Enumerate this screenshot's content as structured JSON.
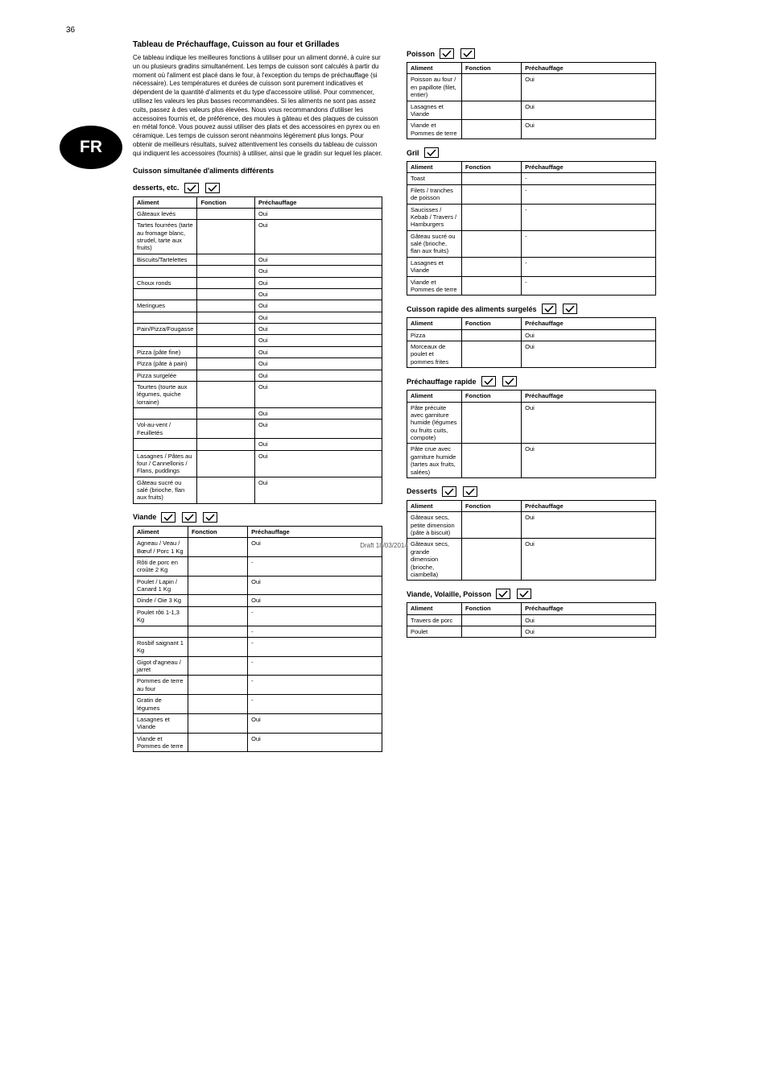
{
  "page_number": "36",
  "badge": "FR",
  "footer": "Draft 18/03/2014",
  "intro": {
    "heading": "Tableau de Préchauffage, Cuisson au four et Grillades",
    "text": "Ce tableau indique les meilleures fonctions à utiliser pour un aliment donné, à cuire sur un ou plusieurs gradins simultanément. Les temps de cuisson sont calculés à partir du moment où l'aliment est placé dans le four, à l'exception du temps de préchauffage (si nécessaire). Les températures et durées de cuisson sont purement indicatives et dépendent de la quantité d'aliments et du type d'accessoire utilisé. Pour commencer, utilisez les valeurs les plus basses recommandées. Si les aliments ne sont pas assez cuits, passez à des valeurs plus élevées. Nous vous recommandons d'utiliser les accessoires fournis et, de préférence, des moules à gâteau et des plaques de cuisson en métal foncé. Vous pouvez aussi utiliser des plats et des accessoires en pyrex ou en céramique. Les temps de cuisson seront néanmoins légèrement plus longs. Pour obtenir de meilleurs résultats, suivez attentivement les conseils du tableau de cuisson qui indiquent les accessoires (fournis) à utiliser, ainsi que le gradin sur lequel les placer.",
    "simul_label": "Cuisson simultanée d'aliments différents"
  },
  "table_headers": {
    "food": "Aliment",
    "function": "Fonction",
    "preheat": "Préchauffage"
  },
  "sections": [
    {
      "title_parts": [
        "desserts, etc."
      ],
      "icons": [
        "check",
        "check"
      ],
      "rows": [
        [
          "Gâteaux levés",
          "",
          "Oui"
        ],
        [
          "Tartes fourrées (tarte au fromage blanc, strudel, tarte aux fruits)",
          "",
          "Oui"
        ],
        [
          "Biscuits/Tartelettes",
          "",
          "Oui"
        ],
        [
          "",
          "",
          "Oui"
        ],
        [
          "Choux ronds",
          "",
          "Oui"
        ],
        [
          "",
          "",
          "Oui"
        ],
        [
          "Meringues",
          "",
          "Oui"
        ],
        [
          "",
          "",
          "Oui"
        ],
        [
          "Pain/Pizza/Fougasse",
          "",
          "Oui"
        ],
        [
          "",
          "",
          "Oui"
        ],
        [
          "Pizza (pâte fine)",
          "",
          "Oui"
        ],
        [
          "Pizza (pâte à pain)",
          "",
          "Oui"
        ],
        [
          "Pizza surgelée",
          "",
          "Oui"
        ],
        [
          "Tourtes (tourte aux légumes, quiche lorraine)",
          "",
          "Oui"
        ],
        [
          "",
          "",
          "Oui"
        ],
        [
          "Vol-au-vent / Feuilletés",
          "",
          "Oui"
        ],
        [
          "",
          "",
          "Oui"
        ],
        [
          "Lasagnes / Pâtes au four / Cannellonis / Flans, puddings",
          "",
          "Oui"
        ],
        [
          "Gâteau sucré ou salé (brioche, flan aux fruits)",
          "",
          "Oui"
        ]
      ]
    },
    {
      "title_parts": [
        "Viande"
      ],
      "icons": [
        "check",
        "check",
        "check"
      ],
      "rows": [
        [
          "Agneau / Veau / Bœuf / Porc 1 Kg",
          "",
          "Oui"
        ],
        [
          "Rôti de porc en croûte 2 Kg",
          "",
          "-"
        ],
        [
          "Poulet / Lapin / Canard 1 Kg",
          "",
          "Oui"
        ],
        [
          "Dinde / Oie 3 Kg",
          "",
          "Oui"
        ],
        [
          "Poulet rôti 1-1,3 Kg",
          "",
          "-"
        ],
        [
          "",
          "",
          "-"
        ],
        [
          "Rosbif saignant 1 Kg",
          "",
          "-"
        ],
        [
          "Gigot d'agneau / jarret",
          "",
          "-"
        ],
        [
          "Pommes de terre au four",
          "",
          "-"
        ],
        [
          "Gratin de légumes",
          "",
          "-"
        ],
        [
          "Lasagnes et Viande",
          "",
          "Oui"
        ],
        [
          "Viande et Pommes de terre",
          "",
          "Oui"
        ]
      ]
    },
    {
      "title_parts": [
        "Poisson"
      ],
      "icons": [
        "check",
        "check"
      ],
      "rows": [
        [
          "Poisson au four / en papillote (filet, entier)",
          "",
          "Oui"
        ],
        [
          "Lasagnes et Viande",
          "",
          "Oui"
        ],
        [
          "Viande et Pommes de terre",
          "",
          "Oui"
        ]
      ]
    },
    {
      "title_parts": [
        "Gril"
      ],
      "icons": [
        "check"
      ],
      "rows": [
        [
          "Toast",
          "",
          "-"
        ],
        [
          "Filets / tranches de poisson",
          "",
          "-"
        ],
        [
          "Saucisses / Kebab / Travers / Hamburgers",
          "",
          "-"
        ],
        [
          "Gâteau sucré ou salé (brioche, flan aux fruits)",
          "",
          "-"
        ],
        [
          "Lasagnes et Viande",
          "",
          "-"
        ],
        [
          "Viande et Pommes de terre",
          "",
          "-"
        ]
      ]
    },
    {
      "title_parts": [
        "Cuisson rapide des aliments surgelés"
      ],
      "icons": [
        "check",
        "check"
      ],
      "rows": [
        [
          "Pizza",
          "",
          "Oui"
        ],
        [
          "Morceaux de poulet et pommes frites",
          "",
          "Oui"
        ]
      ]
    },
    {
      "title_parts": [
        "Préchauffage rapide"
      ],
      "icons": [
        "check",
        "check"
      ],
      "rows": [
        [
          "Pâte précuite avec garniture humide (légumes ou fruits cuits, compote)",
          "",
          "Oui"
        ],
        [
          "Pâte crue avec garniture humide (tartes aux fruits, salées)",
          "",
          "Oui"
        ]
      ]
    },
    {
      "title_parts": [
        "Desserts"
      ],
      "icons": [
        "check",
        "check"
      ],
      "rows": [
        [
          "Gâteaux secs, petite dimension (pâte à biscuit)",
          "",
          "Oui"
        ],
        [
          "Gâteaux secs, grande dimension (brioche, ciambella)",
          "",
          "Oui"
        ]
      ]
    },
    {
      "title_parts": [
        "Viande, Volaille, Poisson"
      ],
      "icons": [
        "check",
        "check"
      ],
      "rows": [
        [
          "Travers de porc",
          "",
          "Oui"
        ],
        [
          "Poulet",
          "",
          "Oui"
        ]
      ]
    }
  ]
}
